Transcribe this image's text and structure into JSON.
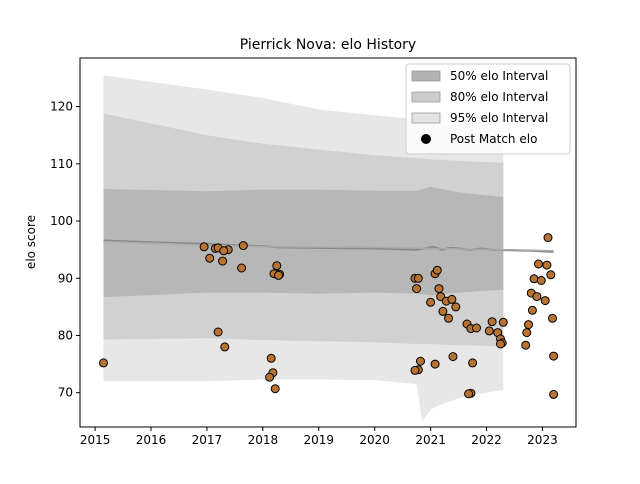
{
  "chart_data": {
    "type": "scatter",
    "title": "Pierrick Nova: elo History",
    "xlabel": "",
    "ylabel": "elo score",
    "xlim": [
      2014.73,
      2023.6
    ],
    "ylim": [
      64.0,
      128.5
    ],
    "x_ticks": [
      "2015",
      "2016",
      "2017",
      "2018",
      "2019",
      "2020",
      "2021",
      "2022",
      "2023"
    ],
    "y_ticks": [
      "70",
      "80",
      "90",
      "100",
      "110",
      "120"
    ],
    "legend_position": "top-right",
    "grid": false,
    "legend": [
      {
        "label": "50% elo Interval",
        "kind": "patch",
        "color": "#b3b3b3"
      },
      {
        "label": "80% elo Interval",
        "kind": "patch",
        "color": "#cccccc"
      },
      {
        "label": "95% elo Interval",
        "kind": "patch",
        "color": "#e3e3e3"
      },
      {
        "label": "Post Match elo",
        "kind": "marker",
        "color": "#000000"
      }
    ],
    "bands": [
      {
        "name": "95% elo Interval",
        "color": "#e3e3e3",
        "x": [
          2015.15,
          2017.0,
          2018.0,
          2019.0,
          2020.0,
          2020.75,
          2020.85,
          2021.0,
          2021.2,
          2021.5,
          2022.0,
          2022.3
        ],
        "upper": [
          125.5,
          123.0,
          121.5,
          119.5,
          118.5,
          117.8,
          117.5,
          117.2,
          116.8,
          116.5,
          116.2,
          115.8
        ],
        "lower": [
          72.0,
          72.0,
          72.3,
          72.3,
          72.2,
          71.5,
          65.0,
          67.0,
          68.0,
          69.0,
          70.0,
          70.5
        ]
      },
      {
        "name": "80% elo Interval",
        "color": "#cccccc",
        "x": [
          2015.15,
          2017.0,
          2018.0,
          2019.0,
          2020.0,
          2020.75,
          2021.0,
          2021.5,
          2022.0,
          2022.3
        ],
        "upper": [
          118.8,
          115.0,
          113.5,
          112.5,
          111.5,
          111.0,
          110.8,
          110.5,
          110.3,
          110.2
        ],
        "lower": [
          79.3,
          79.5,
          79.2,
          79.0,
          78.8,
          78.5,
          78.5,
          78.3,
          78.2,
          78.0
        ]
      },
      {
        "name": "50% elo Interval",
        "color": "#b3b3b3",
        "x": [
          2015.15,
          2017.0,
          2018.0,
          2019.0,
          2020.0,
          2020.75,
          2021.0,
          2021.5,
          2022.0,
          2022.3
        ],
        "upper": [
          105.6,
          105.2,
          105.5,
          105.5,
          105.3,
          105.3,
          106.0,
          105.0,
          104.5,
          104.2
        ],
        "lower": [
          86.7,
          87.5,
          87.5,
          87.3,
          87.5,
          87.3,
          87.0,
          87.5,
          87.8,
          88.0
        ]
      }
    ],
    "lines": [
      {
        "name": "mean",
        "color": "#888888",
        "x": [
          2015.15,
          2016.0,
          2017.0,
          2017.5,
          2018.0,
          2018.3,
          2019.0,
          2020.0,
          2020.75,
          2020.95,
          2021.05,
          2021.2,
          2021.35,
          2021.5,
          2021.7,
          2021.9,
          2022.1,
          2022.4,
          2022.8,
          2023.0,
          2023.2
        ],
        "y": [
          96.6,
          96.3,
          96.0,
          95.8,
          95.6,
          95.4,
          95.3,
          95.2,
          95.0,
          95.3,
          95.5,
          95.0,
          95.3,
          95.2,
          95.0,
          95.2,
          95.0,
          94.9,
          94.8,
          94.7,
          94.6
        ]
      },
      {
        "name": "trend",
        "color": "#aaaaaa",
        "x": [
          2015.15,
          2017.0,
          2018.0,
          2020.0,
          2021.0,
          2022.3,
          2023.2
        ],
        "y": [
          96.4,
          95.8,
          95.5,
          95.4,
          95.2,
          95.0,
          94.8
        ]
      }
    ],
    "points": {
      "name": "Post Match elo",
      "color": "#b87333",
      "edge": "#000000",
      "x": [
        2015.15,
        2016.95,
        2017.05,
        2017.15,
        2017.2,
        2017.28,
        2017.32,
        2017.38,
        2017.65,
        2017.62,
        2017.2,
        2017.3,
        2018.15,
        2018.18,
        2018.2,
        2018.25,
        2018.3,
        2018.28,
        2018.12,
        2018.22,
        2020.72,
        2020.75,
        2020.78,
        2020.82,
        2020.78,
        2020.72,
        2021.0,
        2021.08,
        2021.12,
        2021.15,
        2021.18,
        2021.22,
        2021.28,
        2021.32,
        2021.38,
        2021.4,
        2021.45,
        2021.08,
        2021.65,
        2021.72,
        2021.75,
        2021.82,
        2022.05,
        2022.1,
        2022.2,
        2022.25,
        2022.28,
        2022.3,
        2022.25,
        2021.72,
        2021.68,
        2022.7,
        2022.72,
        2022.75,
        2022.8,
        2022.82,
        2022.85,
        2022.9,
        2022.93,
        2022.98,
        2023.05,
        2023.08,
        2023.1,
        2023.15,
        2023.18,
        2023.2,
        2023.2
      ],
      "y": [
        75.2,
        95.5,
        93.5,
        95.2,
        80.6,
        93.0,
        78.0,
        95.0,
        95.7,
        91.8,
        95.3,
        94.8,
        76.0,
        73.5,
        90.8,
        92.2,
        90.7,
        90.5,
        72.7,
        70.7,
        90.0,
        88.2,
        90.0,
        75.5,
        74.0,
        73.9,
        85.8,
        90.8,
        91.4,
        88.2,
        86.8,
        84.2,
        86.0,
        83.0,
        86.3,
        76.3,
        85.0,
        75.0,
        82.0,
        81.2,
        75.2,
        81.3,
        80.8,
        82.4,
        80.5,
        79.4,
        78.7,
        82.3,
        78.5,
        69.9,
        69.8,
        78.3,
        80.5,
        81.9,
        87.4,
        84.4,
        89.9,
        86.8,
        92.5,
        89.6,
        86.1,
        92.3,
        97.1,
        90.6,
        83.0,
        76.4,
        69.7
      ]
    }
  }
}
